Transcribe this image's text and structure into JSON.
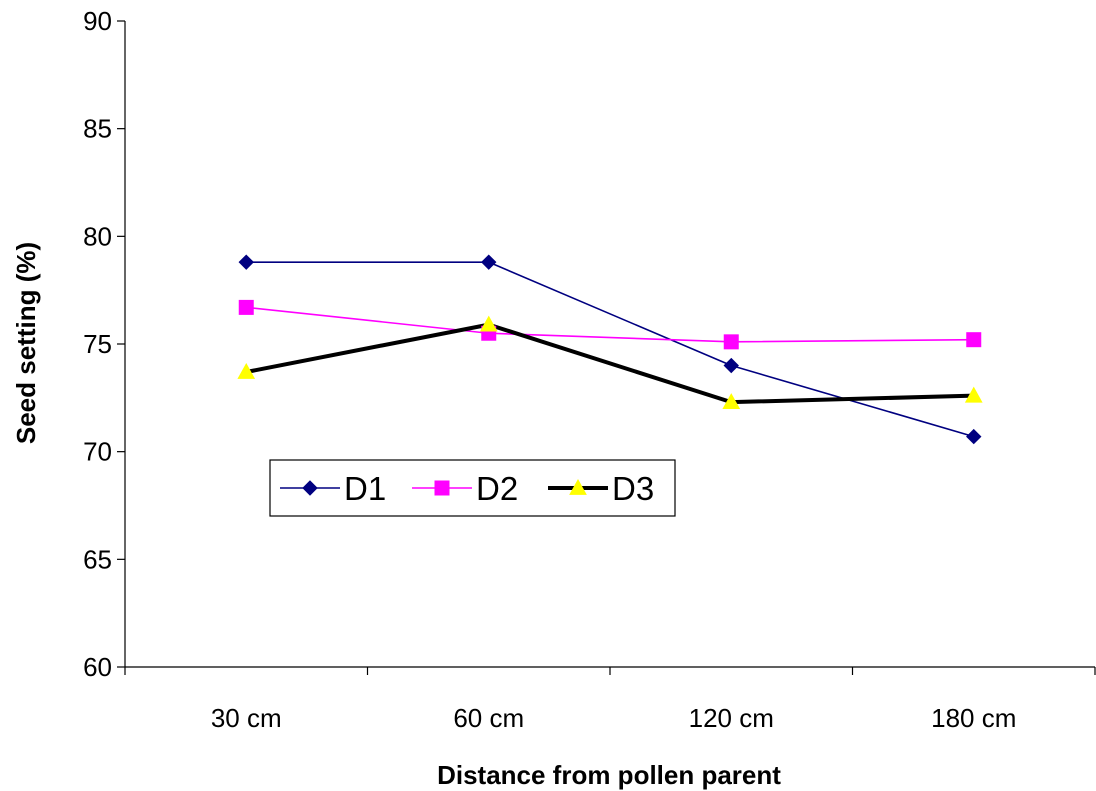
{
  "chart_data": {
    "type": "line",
    "title": "",
    "xlabel": "Distance from pollen parent",
    "ylabel": "Seed setting (%)",
    "categories": [
      "30 cm",
      "60 cm",
      "120 cm",
      "180 cm"
    ],
    "ylim": [
      60,
      90
    ],
    "yticks": [
      60,
      65,
      70,
      75,
      80,
      85,
      90
    ],
    "ytick_labels": [
      "60",
      "65",
      "70",
      "75",
      "80",
      "85",
      "90"
    ],
    "grid": false,
    "legend_position": "inside-left",
    "series": [
      {
        "name": "D1",
        "values": [
          78.8,
          78.8,
          74.0,
          70.7
        ],
        "color": "#000080",
        "marker": "diamond",
        "line_width": "thin"
      },
      {
        "name": "D2",
        "values": [
          76.7,
          75.5,
          75.1,
          75.2
        ],
        "color": "#FF00FF",
        "marker": "square",
        "line_width": "thin"
      },
      {
        "name": "D3",
        "values": [
          73.7,
          75.9,
          72.3,
          72.6
        ],
        "color": "#000000",
        "marker": "triangle",
        "marker_color": "#FFFF00",
        "line_width": "thick"
      }
    ]
  }
}
